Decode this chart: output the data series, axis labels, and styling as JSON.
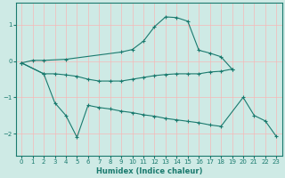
{
  "xlabel": "Humidex (Indice chaleur)",
  "background_color": "#ceeae5",
  "line_color": "#1a7a6e",
  "grid_color": "#f5b8b8",
  "xlim": [
    -0.5,
    23.5
  ],
  "ylim": [
    -2.6,
    1.6
  ],
  "yticks": [
    -2,
    -1,
    0,
    1
  ],
  "xticks": [
    0,
    1,
    2,
    3,
    4,
    5,
    6,
    7,
    8,
    9,
    10,
    11,
    12,
    13,
    14,
    15,
    16,
    17,
    18,
    19,
    20,
    21,
    22,
    23
  ],
  "line1_x": [
    0,
    1,
    2,
    4,
    9,
    10,
    11,
    12,
    13,
    14,
    15,
    16,
    17,
    18,
    19
  ],
  "line1_y": [
    -0.05,
    0.02,
    0.02,
    0.05,
    0.25,
    0.32,
    0.55,
    0.95,
    1.22,
    1.2,
    1.1,
    0.3,
    0.22,
    0.12,
    -0.22
  ],
  "line2_x": [
    0,
    2,
    3,
    4,
    5,
    6,
    7,
    8,
    9,
    10,
    11,
    12,
    13,
    14,
    15,
    16,
    17,
    18,
    19
  ],
  "line2_y": [
    -0.05,
    -0.35,
    -0.35,
    -0.38,
    -0.42,
    -0.5,
    -0.55,
    -0.55,
    -0.55,
    -0.5,
    -0.45,
    -0.4,
    -0.37,
    -0.35,
    -0.35,
    -0.35,
    -0.3,
    -0.28,
    -0.22
  ],
  "line3_x": [
    0,
    2,
    3,
    4,
    5,
    6,
    7,
    8,
    9,
    10,
    11,
    12,
    13,
    14,
    15,
    16,
    17,
    18,
    20,
    21,
    22,
    23
  ],
  "line3_y": [
    -0.05,
    -0.35,
    -1.15,
    -1.5,
    -2.1,
    -1.22,
    -1.28,
    -1.32,
    -1.38,
    -1.42,
    -1.48,
    -1.52,
    -1.58,
    -1.62,
    -1.66,
    -1.7,
    -1.76,
    -1.8,
    -1.0,
    -1.5,
    -1.65,
    -2.08
  ],
  "tick_fontsize": 5.0,
  "xlabel_fontsize": 6.0
}
